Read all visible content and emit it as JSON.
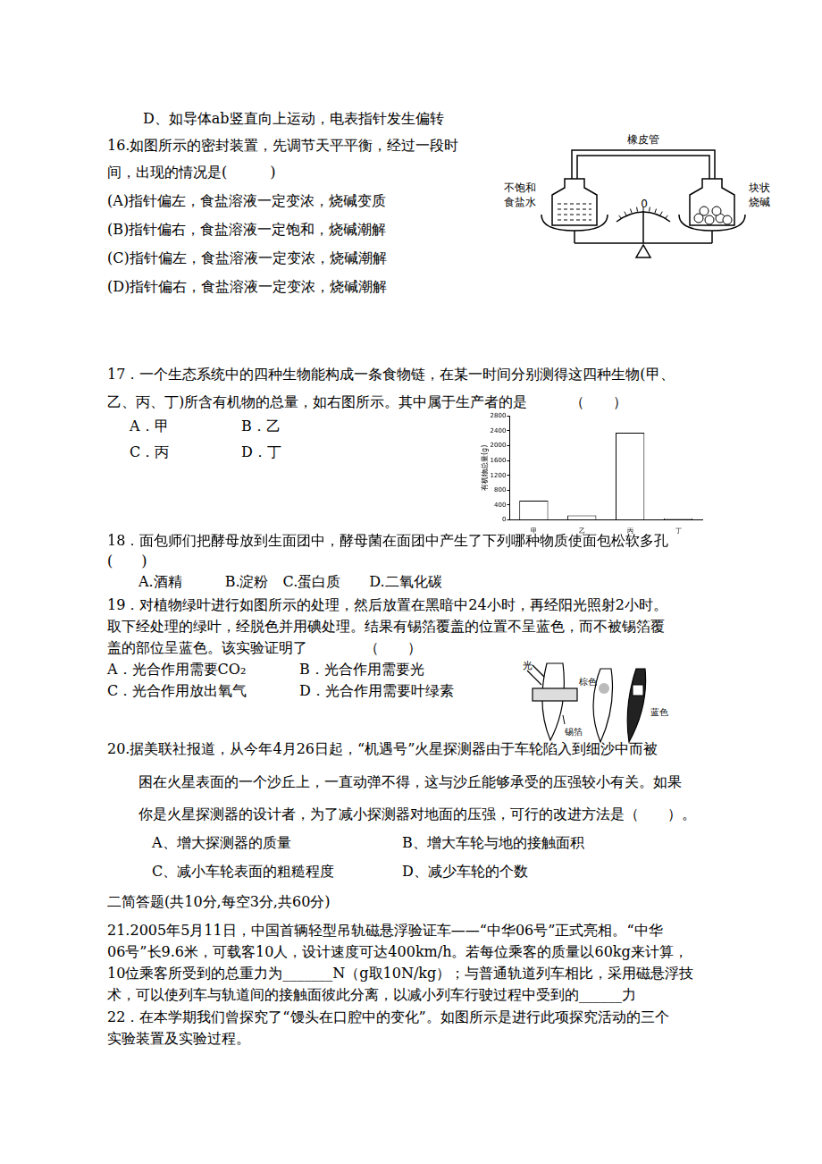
{
  "lines": [
    "D、如导体ab竖直向上运动，电表指针发生偏转",
    "16.如图所示的密封装置，先调节天平平衡，经过一段时",
    "间，出现的情况是(　　　)",
    "(A)指针偏左，食盐溶液一定变浓，烧碱变质",
    "(B)指针偏右，食盐溶液一定饱和，烧碱潮解",
    "(C)指针偏左，食盐溶液一定变浓，烧碱潮解",
    "(D)指针偏右，食盐溶液一定变浓，烧碱潮解",
    "17．一个生态系统中的四种生物能构成一条食物链，在某一时间分别测得这四种生物(甲、",
    "乙、丙、丁)所含有机物的总量，如右图所示。其中属于生产者的是　　　（　　）",
    "A．甲",
    "B．乙",
    "C．丙",
    "D．丁",
    "18．面包师们把酵母放到生面团中，酵母菌在面团中产生了下列哪种物质使面包松软多孔",
    "(　　)",
    "A.酒精　　　B.淀粉　C.蛋白质　　D.二氧化碳",
    "19．对植物绿叶进行如图所示的处理，然后放置在黑暗中24小时，再经阳光照射2小时。",
    "取下经处理的绿叶，经脱色并用碘处理。结果有锡箔覆盖的位置不呈蓝色，而不被锡箔覆",
    "盖的部位呈蓝色。该实验证明了　　　　（　　）",
    "A．光合作用需要CO₂",
    "B．光合作用需要光",
    "C．光合作用放出氧气",
    "D．光合作用需要叶绿素",
    "20.据美联社报道，从今年4月26日起，“机遇号”火星探测器由于车轮陷入到细沙中而被",
    "困在火星表面的一个沙丘上，一直动弹不得，这与沙丘能够承受的压强较小有关。如果",
    "你是火星探测器的设计者，为了减小探测器对地面的压强，可行的改进方法是（　　）。",
    "A、增大探测器的质量",
    "B、增大车轮与地的接触面积",
    "C、减小车轮表面的粗糙程度",
    "D、减少车轮的个数",
    "二简答题(共10分,每空3分,共60分)",
    "21.2005年5月11日，中国首辆轻型吊轨磁悬浮验证车——“中华06号”正式亮相。“中华",
    "06号”长9.6米，可载客10人，设计速度可达400km/h。若每位乘客的质量以60kg来计算，",
    "10位乘客所受到的总重力为_______N（g取10N/kg）；与普通轨道列车相比，采用磁悬浮技",
    "术，可以使列车与轨道间的接触面彼此分离，以减小列车行驶过程中受到的______力",
    "22．在本学期我们曾探究了“馒头在口腔中的变化”。如图所示是进行此项探究活动的三个",
    "实验装置及实验过程。"
  ],
  "figure16": {
    "tube_label": "橡皮管",
    "left_label": [
      "不饱和",
      "食盐水"
    ],
    "scale_label": "0",
    "right_label": [
      "块状",
      "烧碱"
    ]
  },
  "figure19": {
    "light_label": "光",
    "brown_label": "棕色",
    "blue_label": "蓝色",
    "foil_label": "锡箔"
  },
  "chart_data": {
    "type": "bar",
    "ylabel": "有机物总量(g)",
    "categories": [
      "甲",
      "乙",
      "丙",
      "丁"
    ],
    "values": [
      520,
      120,
      2350,
      40
    ],
    "color": "#ffffff",
    "ylim": [
      0,
      2800
    ],
    "yticks": [
      0,
      400,
      800,
      1200,
      1600,
      2000,
      2400,
      2800
    ],
    "grid": false
  }
}
